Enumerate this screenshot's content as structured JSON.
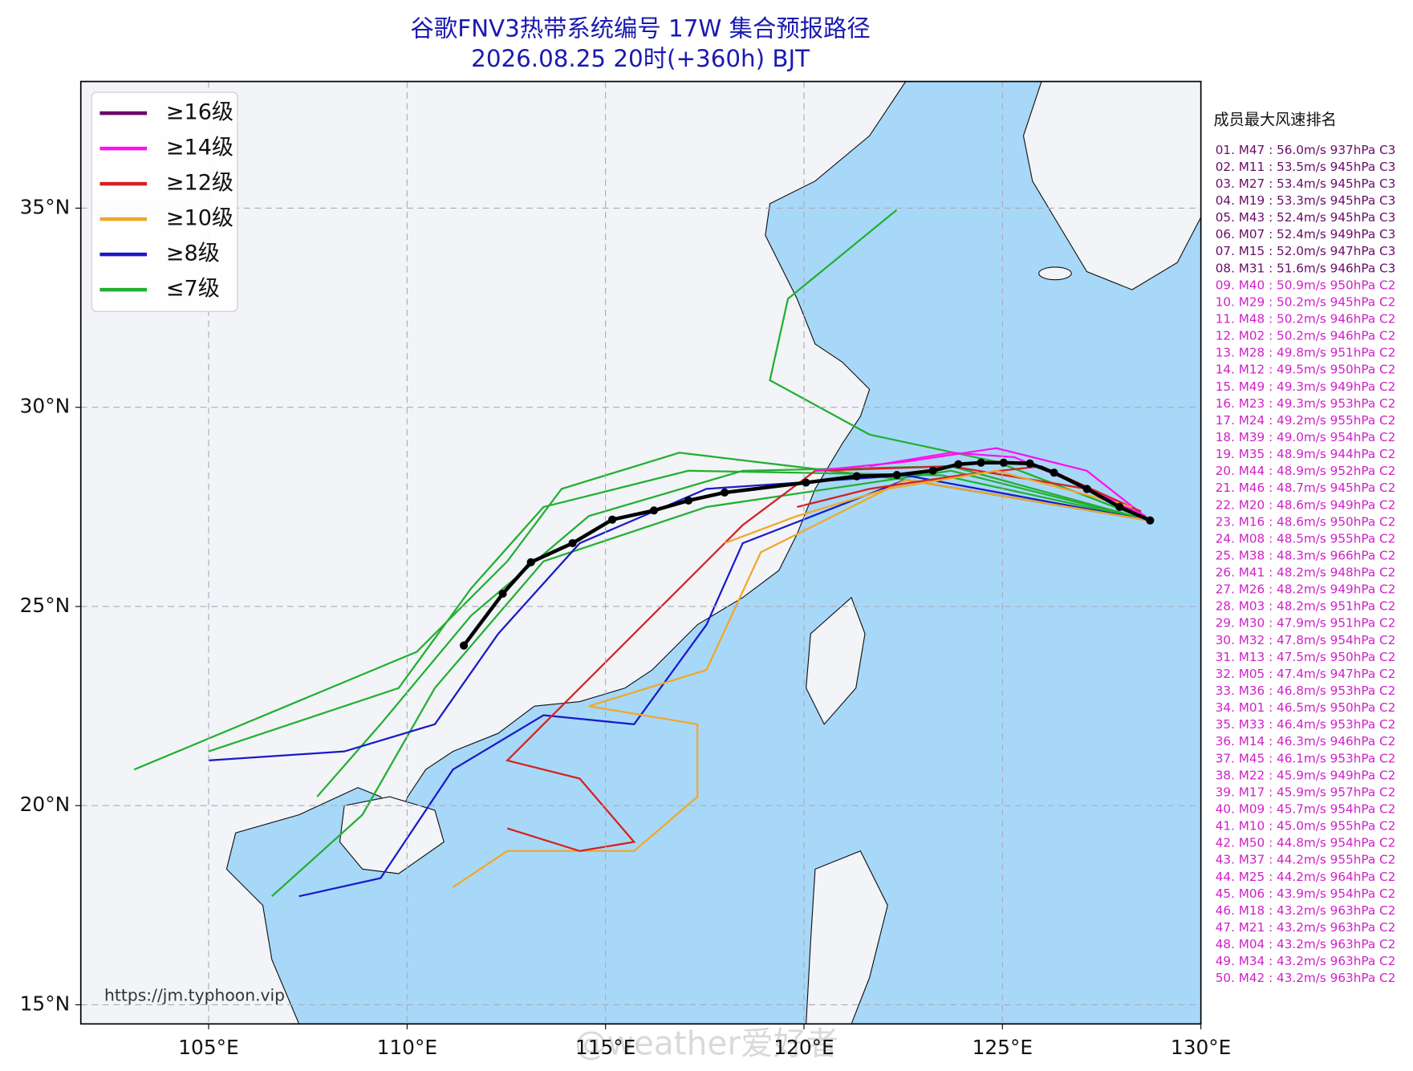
{
  "chart_data": {
    "type": "map",
    "title": "谷歌FNV3热带系统编号 17W 集合预报路径",
    "subtitle": "2026.08.25 20时(+360h) BJT",
    "xlim": [
      101.78,
      130
    ],
    "ylim": [
      14.52,
      38.18
    ],
    "xticks": [
      {
        "value": 105,
        "label": "105°E"
      },
      {
        "value": 110,
        "label": "110°E"
      },
      {
        "value": 115,
        "label": "115°E"
      },
      {
        "value": 120,
        "label": "120°E"
      },
      {
        "value": 125,
        "label": "125°E"
      },
      {
        "value": 130,
        "label": "130°E"
      }
    ],
    "yticks": [
      {
        "value": 15,
        "label": "15°N"
      },
      {
        "value": 20,
        "label": "20°N"
      },
      {
        "value": 25,
        "label": "25°N"
      },
      {
        "value": 30,
        "label": "30°N"
      },
      {
        "value": 35,
        "label": "35°N"
      }
    ],
    "grid": true,
    "legend": {
      "position": "upper left",
      "items": [
        {
          "label": "≥16级",
          "color": "#6a0a6a"
        },
        {
          "label": "≥14级",
          "color": "#ff10f0"
        },
        {
          "label": "≥12级",
          "color": "#d62020"
        },
        {
          "label": "≥10级",
          "color": "#f0a828"
        },
        {
          "label": "≥8级",
          "color": "#1a1ac8"
        },
        {
          "label": "≤7级",
          "color": "#22b030"
        }
      ]
    },
    "track": {
      "color": "#000000",
      "x": [
        111.43,
        112.41,
        113.12,
        114.17,
        115.17,
        116.22,
        117.09,
        118.0,
        120.05,
        121.33,
        122.34,
        123.25,
        123.89,
        124.46,
        125.03,
        125.69,
        126.3,
        127.13,
        127.95,
        128.72
      ],
      "y": [
        24.02,
        25.32,
        26.11,
        26.59,
        27.18,
        27.41,
        27.66,
        27.86,
        28.11,
        28.27,
        28.3,
        28.41,
        28.57,
        28.61,
        28.61,
        28.59,
        28.36,
        27.95,
        27.5,
        27.16
      ]
    },
    "ranking": {
      "title": "成员最大风速排名",
      "items": [
        {
          "text": "01. M47 : 56.0m/s 937hPa C3",
          "color": "#6a0a6a"
        },
        {
          "text": "02. M11 : 53.5m/s 945hPa C3",
          "color": "#6a0a6a"
        },
        {
          "text": "03. M27 : 53.4m/s 945hPa C3",
          "color": "#6a0a6a"
        },
        {
          "text": "04. M19 : 53.3m/s 945hPa C3",
          "color": "#6a0a6a"
        },
        {
          "text": "05. M43 : 52.4m/s 945hPa C3",
          "color": "#6a0a6a"
        },
        {
          "text": "06. M07 : 52.4m/s 949hPa C3",
          "color": "#6a0a6a"
        },
        {
          "text": "07. M15 : 52.0m/s 947hPa C3",
          "color": "#6a0a6a"
        },
        {
          "text": "08. M31 : 51.6m/s 946hPa C3",
          "color": "#6a0a6a"
        },
        {
          "text": "09. M40 : 50.9m/s 950hPa C2",
          "color": "#d020c8"
        },
        {
          "text": "10. M29 : 50.2m/s 945hPa C2",
          "color": "#d020c8"
        },
        {
          "text": "11. M48 : 50.2m/s 946hPa C2",
          "color": "#d020c8"
        },
        {
          "text": "12. M02 : 50.2m/s 946hPa C2",
          "color": "#d020c8"
        },
        {
          "text": "13. M28 : 49.8m/s 951hPa C2",
          "color": "#d020c8"
        },
        {
          "text": "14. M12 : 49.5m/s 950hPa C2",
          "color": "#d020c8"
        },
        {
          "text": "15. M49 : 49.3m/s 949hPa C2",
          "color": "#d020c8"
        },
        {
          "text": "16. M23 : 49.3m/s 953hPa C2",
          "color": "#d020c8"
        },
        {
          "text": "17. M24 : 49.2m/s 955hPa C2",
          "color": "#d020c8"
        },
        {
          "text": "18. M39 : 49.0m/s 954hPa C2",
          "color": "#d020c8"
        },
        {
          "text": "19. M35 : 48.9m/s 944hPa C2",
          "color": "#d020c8"
        },
        {
          "text": "20. M44 : 48.9m/s 952hPa C2",
          "color": "#d020c8"
        },
        {
          "text": "21. M46 : 48.7m/s 945hPa C2",
          "color": "#d020c8"
        },
        {
          "text": "22. M20 : 48.6m/s 949hPa C2",
          "color": "#d020c8"
        },
        {
          "text": "23. M16 : 48.6m/s 950hPa C2",
          "color": "#d020c8"
        },
        {
          "text": "24. M08 : 48.5m/s 955hPa C2",
          "color": "#d020c8"
        },
        {
          "text": "25. M38 : 48.3m/s 966hPa C2",
          "color": "#d020c8"
        },
        {
          "text": "26. M41 : 48.2m/s 948hPa C2",
          "color": "#d020c8"
        },
        {
          "text": "27. M26 : 48.2m/s 949hPa C2",
          "color": "#d020c8"
        },
        {
          "text": "28. M03 : 48.2m/s 951hPa C2",
          "color": "#d020c8"
        },
        {
          "text": "29. M30 : 47.9m/s 951hPa C2",
          "color": "#d020c8"
        },
        {
          "text": "30. M32 : 47.8m/s 954hPa C2",
          "color": "#d020c8"
        },
        {
          "text": "31. M13 : 47.5m/s 950hPa C2",
          "color": "#d020c8"
        },
        {
          "text": "32. M05 : 47.4m/s 947hPa C2",
          "color": "#d020c8"
        },
        {
          "text": "33. M36 : 46.8m/s 953hPa C2",
          "color": "#d020c8"
        },
        {
          "text": "34. M01 : 46.5m/s 950hPa C2",
          "color": "#d020c8"
        },
        {
          "text": "35. M33 : 46.4m/s 953hPa C2",
          "color": "#d020c8"
        },
        {
          "text": "36. M14 : 46.3m/s 946hPa C2",
          "color": "#d020c8"
        },
        {
          "text": "37. M45 : 46.1m/s 953hPa C2",
          "color": "#d020c8"
        },
        {
          "text": "38. M22 : 45.9m/s 949hPa C2",
          "color": "#d020c8"
        },
        {
          "text": "39. M17 : 45.9m/s 957hPa C2",
          "color": "#d020c8"
        },
        {
          "text": "40. M09 : 45.7m/s 954hPa C2",
          "color": "#d020c8"
        },
        {
          "text": "41. M10 : 45.0m/s 955hPa C2",
          "color": "#d020c8"
        },
        {
          "text": "42. M50 : 44.8m/s 954hPa C2",
          "color": "#d020c8"
        },
        {
          "text": "43. M37 : 44.2m/s 955hPa C2",
          "color": "#d020c8"
        },
        {
          "text": "44. M25 : 44.2m/s 964hPa C2",
          "color": "#d020c8"
        },
        {
          "text": "45. M06 : 43.9m/s 954hPa C2",
          "color": "#d020c8"
        },
        {
          "text": "46. M18 : 43.2m/s 963hPa C2",
          "color": "#d020c8"
        },
        {
          "text": "47. M21 : 43.2m/s 963hPa C2",
          "color": "#d020c8"
        },
        {
          "text": "48. M04 : 43.2m/s 963hPa C2",
          "color": "#d020c8"
        },
        {
          "text": "49. M34 : 43.2m/s 963hPa C2",
          "color": "#d020c8"
        },
        {
          "text": "50. M42 : 43.2m/s 963hPa C2",
          "color": "#d020c8"
        }
      ]
    },
    "source": "https://jm.typhoon.vip",
    "watermark": "@weather爱好者"
  }
}
